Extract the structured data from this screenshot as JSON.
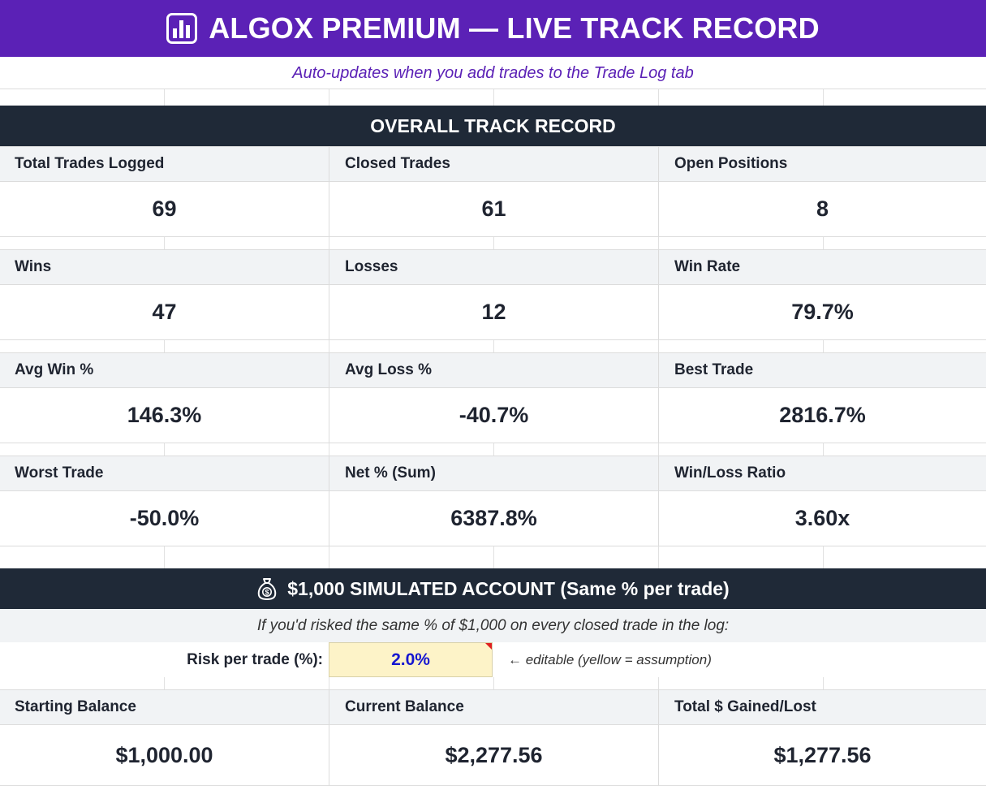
{
  "header": {
    "title": "ALGOX PREMIUM — LIVE TRACK RECORD",
    "subtitle": "Auto-updates when you add trades to the Trade Log tab",
    "icon": "bar-chart-icon",
    "bg_color": "#5b21b6"
  },
  "track_record": {
    "title": "OVERALL TRACK RECORD",
    "rows": [
      [
        {
          "label": "Total Trades Logged",
          "value": "69"
        },
        {
          "label": "Closed Trades",
          "value": "61"
        },
        {
          "label": "Open Positions",
          "value": "8"
        }
      ],
      [
        {
          "label": "Wins",
          "value": "47"
        },
        {
          "label": "Losses",
          "value": "12"
        },
        {
          "label": "Win Rate",
          "value": "79.7%"
        }
      ],
      [
        {
          "label": "Avg Win %",
          "value": "146.3%"
        },
        {
          "label": "Avg Loss %",
          "value": "-40.7%"
        },
        {
          "label": "Best Trade",
          "value": "2816.7%"
        }
      ],
      [
        {
          "label": "Worst Trade",
          "value": "-50.0%"
        },
        {
          "label": "Net % (Sum)",
          "value": "6387.8%"
        },
        {
          "label": "Win/Loss Ratio",
          "value": "3.60x"
        }
      ]
    ]
  },
  "simulation": {
    "title": "$1,000 SIMULATED ACCOUNT (Same % per trade)",
    "icon": "money-bag-icon",
    "note": "If you'd risked the same % of $1,000 on every closed trade in the log:",
    "risk_label": "Risk per trade (%):",
    "risk_value": "2.0%",
    "risk_note": "← editable (yellow = assumption)",
    "metrics": [
      {
        "label": "Starting Balance",
        "value": "$1,000.00"
      },
      {
        "label": "Current Balance",
        "value": "$2,277.56"
      },
      {
        "label": "Total $ Gained/Lost",
        "value": "$1,277.56"
      }
    ]
  }
}
